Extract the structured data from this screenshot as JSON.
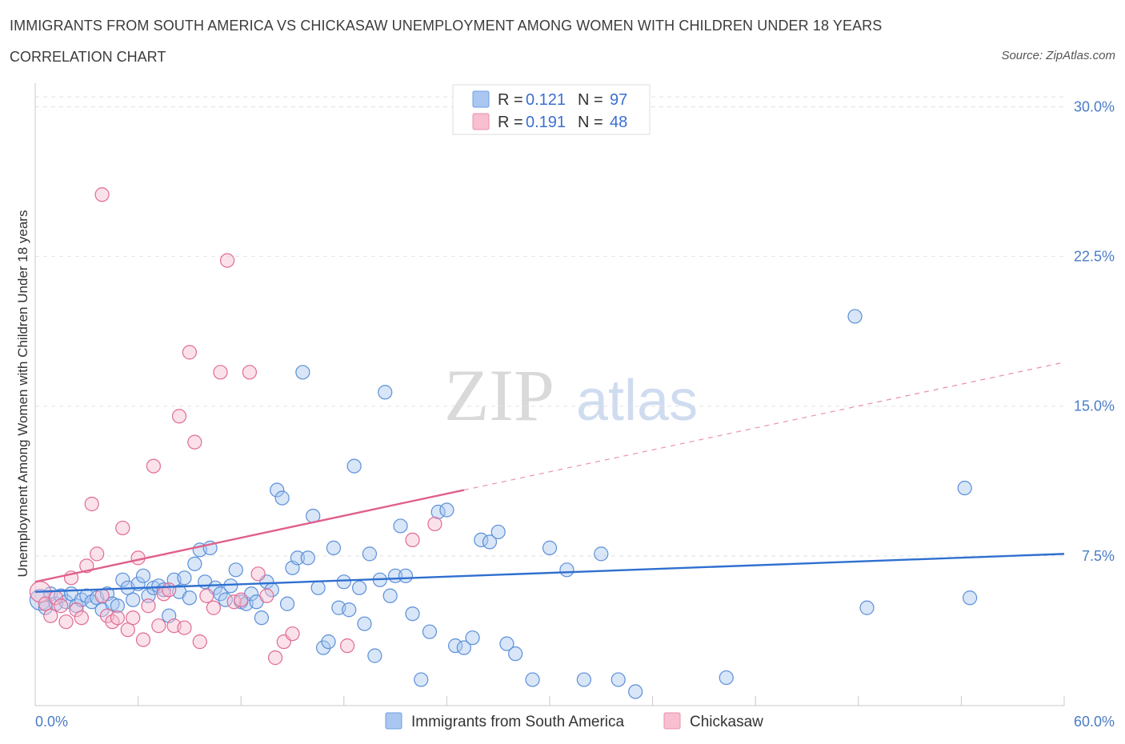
{
  "title": "IMMIGRANTS FROM SOUTH AMERICA VS CHICKASAW UNEMPLOYMENT AMONG WOMEN WITH CHILDREN UNDER 18 YEARS",
  "subtitle": "CORRELATION CHART",
  "source": "Source: ZipAtlas.com",
  "watermark": {
    "zip": "ZIP",
    "atlas": "atlas"
  },
  "legend": {
    "r_label": "R = ",
    "n_label": "N = ",
    "rows": [
      {
        "r": "0.121",
        "n": "97",
        "fill": "#a9c7f0",
        "stroke": "#6f9fe0"
      },
      {
        "r": "0.191",
        "n": "48",
        "fill": "#f7bfd0",
        "stroke": "#e891ab"
      }
    ]
  },
  "bottom_legend": [
    {
      "label": "Immigrants from South America",
      "fill": "#a9c7f0",
      "stroke": "#6f9fe0"
    },
    {
      "label": "Chickasaw",
      "fill": "#f7bfd0",
      "stroke": "#e891ab"
    }
  ],
  "chart_data": {
    "type": "scatter",
    "title": "IMMIGRANTS FROM SOUTH AMERICA VS CHICKASAW UNEMPLOYMENT AMONG WOMEN WITH CHILDREN UNDER 18 YEARS",
    "subtitle": "CORRELATION CHART",
    "xlabel": "",
    "ylabel": "Unemployment Among Women with Children Under 18 years",
    "xlim": [
      0,
      60
    ],
    "ylim": [
      0,
      30.5
    ],
    "x_tick_labels": [
      "0.0%",
      "60.0%"
    ],
    "y_ticks": [
      7.5,
      15.0,
      22.5,
      30.0
    ],
    "y_tick_labels": [
      "7.5%",
      "15.0%",
      "22.5%",
      "30.0%"
    ],
    "grid": "horizontal dashed",
    "legend_position": "top-center",
    "series": [
      {
        "name": "Immigrants from South America",
        "color": "#5b8fd8",
        "fill": "#a9c7f0",
        "r": 0.121,
        "n": 97,
        "trend": {
          "x": [
            0,
            60
          ],
          "y": [
            5.7,
            7.6
          ],
          "style": "solid",
          "color": "#2f6fd0"
        },
        "x": [
          0.3,
          0.6,
          0.9,
          1.2,
          1.5,
          1.8,
          2.1,
          2.4,
          2.7,
          3.0,
          3.3,
          3.6,
          3.9,
          4.2,
          4.5,
          4.8,
          5.1,
          5.4,
          5.7,
          6.0,
          6.3,
          6.6,
          6.9,
          7.2,
          7.5,
          7.8,
          8.1,
          8.4,
          8.7,
          9.0,
          9.3,
          9.6,
          9.9,
          10.2,
          10.5,
          10.8,
          11.1,
          11.4,
          11.7,
          12.0,
          12.3,
          12.6,
          12.9,
          13.2,
          13.5,
          13.8,
          14.1,
          14.4,
          14.7,
          15.0,
          15.3,
          15.6,
          15.9,
          16.2,
          16.5,
          16.8,
          17.1,
          17.4,
          17.7,
          18.0,
          18.3,
          18.6,
          18.9,
          19.2,
          19.5,
          19.8,
          20.1,
          20.4,
          20.7,
          21.0,
          21.3,
          21.6,
          22.0,
          22.5,
          23.0,
          23.5,
          24.0,
          24.5,
          25.0,
          25.5,
          26.0,
          26.5,
          27.0,
          27.5,
          28.0,
          29.0,
          30.0,
          31.0,
          32.0,
          33.0,
          34.0,
          35.0,
          40.3,
          47.8,
          54.2,
          54.5,
          48.5
        ],
        "y": [
          5.3,
          4.9,
          5.6,
          5.1,
          5.5,
          5.2,
          5.6,
          5.0,
          5.3,
          5.5,
          5.2,
          5.4,
          4.8,
          5.6,
          5.1,
          5.0,
          6.3,
          5.9,
          5.3,
          6.1,
          6.5,
          5.5,
          5.9,
          6.0,
          5.8,
          4.5,
          6.3,
          5.7,
          6.4,
          5.4,
          7.1,
          7.8,
          6.2,
          7.9,
          5.9,
          5.6,
          5.3,
          6.0,
          6.8,
          5.2,
          5.1,
          5.6,
          5.2,
          4.4,
          6.2,
          5.8,
          10.8,
          10.4,
          5.1,
          6.9,
          7.4,
          16.7,
          7.4,
          9.5,
          5.9,
          2.9,
          3.2,
          7.9,
          4.9,
          6.2,
          4.8,
          12.0,
          5.9,
          4.1,
          7.6,
          2.5,
          6.3,
          15.7,
          5.5,
          6.5,
          9.0,
          6.5,
          4.6,
          1.3,
          3.7,
          9.7,
          9.8,
          3.0,
          2.9,
          3.4,
          8.3,
          8.2,
          8.7,
          3.1,
          2.6,
          1.3,
          7.9,
          6.8,
          1.3,
          7.6,
          1.3,
          0.7,
          1.4,
          19.5,
          10.9,
          5.4,
          4.9
        ]
      },
      {
        "name": "Chickasaw",
        "color": "#e06b95",
        "fill": "#f7bfd0",
        "r": 0.191,
        "n": 48,
        "trend": {
          "x": [
            0,
            25
          ],
          "y": [
            6.2,
            10.8
          ],
          "style": "solid",
          "color": "#e0608c",
          "extension": {
            "x": [
              25,
              60
            ],
            "y": [
              10.8,
              17.2
            ],
            "style": "dashed"
          }
        },
        "x": [
          0.3,
          0.6,
          0.9,
          1.2,
          1.5,
          1.8,
          2.1,
          2.4,
          2.7,
          3.0,
          3.3,
          3.6,
          3.9,
          4.2,
          4.5,
          4.8,
          5.1,
          5.4,
          5.7,
          6.0,
          6.3,
          6.6,
          6.9,
          7.2,
          7.5,
          7.8,
          8.1,
          8.4,
          8.7,
          9.0,
          9.3,
          9.6,
          10.0,
          10.4,
          10.8,
          11.2,
          11.6,
          12.0,
          12.5,
          13.0,
          13.5,
          14.0,
          14.5,
          15.0,
          18.2,
          22.0,
          23.3,
          3.9
        ],
        "y": [
          5.7,
          5.1,
          4.5,
          5.4,
          5.0,
          4.2,
          6.4,
          4.8,
          4.4,
          7.0,
          10.1,
          7.6,
          5.5,
          4.5,
          4.2,
          4.4,
          8.9,
          3.8,
          4.4,
          7.4,
          3.3,
          5.0,
          12.0,
          4.0,
          5.6,
          5.8,
          4.0,
          14.5,
          3.9,
          17.7,
          13.2,
          3.2,
          5.5,
          4.9,
          16.7,
          22.3,
          5.2,
          5.3,
          16.7,
          6.6,
          5.5,
          2.4,
          3.2,
          3.6,
          3.0,
          8.3,
          9.1,
          25.6
        ]
      }
    ]
  }
}
